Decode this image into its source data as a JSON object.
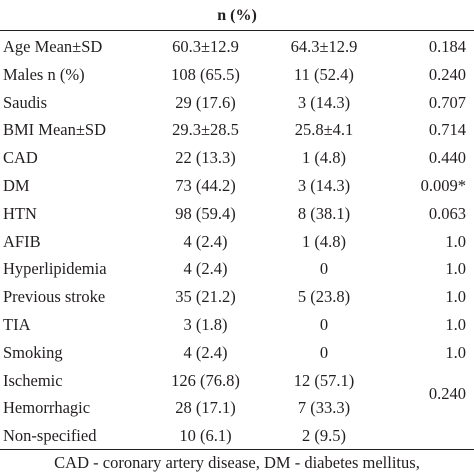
{
  "header": "n (%)",
  "rows": [
    {
      "label": "Age Mean±SD",
      "col1": "60.3±12.9",
      "col2": "64.3±12.9",
      "p": "0.184"
    },
    {
      "label": "Males n (%)",
      "col1": "108 (65.5)",
      "col2": "11 (52.4)",
      "p": "0.240"
    },
    {
      "label": "Saudis",
      "col1": "29 (17.6)",
      "col2": "3 (14.3)",
      "p": "0.707"
    },
    {
      "label": "BMI Mean±SD",
      "col1": "29.3±28.5",
      "col2": "25.8±4.1",
      "p": "0.714"
    },
    {
      "label": "CAD",
      "col1": "22 (13.3)",
      "col2": "1 (4.8)",
      "p": "0.440"
    },
    {
      "label": "DM",
      "col1": "73 (44.2)",
      "col2": "3 (14.3)",
      "p": "0.009*"
    },
    {
      "label": "HTN",
      "col1": "98 (59.4)",
      "col2": "8 (38.1)",
      "p": "0.063"
    },
    {
      "label": "AFIB",
      "col1": "4 (2.4)",
      "col2": "1 (4.8)",
      "p": "1.0"
    },
    {
      "label": "Hyperlipidemia",
      "col1": "4 (2.4)",
      "col2": "0",
      "p": "1.0"
    },
    {
      "label": "Previous stroke",
      "col1": "35 (21.2)",
      "col2": "5 (23.8)",
      "p": "1.0"
    },
    {
      "label": "TIA",
      "col1": "3 (1.8)",
      "col2": "0",
      "p": "1.0"
    },
    {
      "label": "Smoking",
      "col1": "4 (2.4)",
      "col2": "0",
      "p": "1.0"
    },
    {
      "label": "Ischemic",
      "col1": "126 (76.8)",
      "col2": "12 (57.1)"
    },
    {
      "label": "Hemorrhagic",
      "col1": "28 (17.1)",
      "col2": "7 (33.3)"
    },
    {
      "label": "Non-specified",
      "col1": "10 (6.1)",
      "col2": "2 (9.5)"
    }
  ],
  "stroke_type_p": "0.240",
  "footnote": "CAD - coronary artery disease, DM - diabetes mellitus,"
}
